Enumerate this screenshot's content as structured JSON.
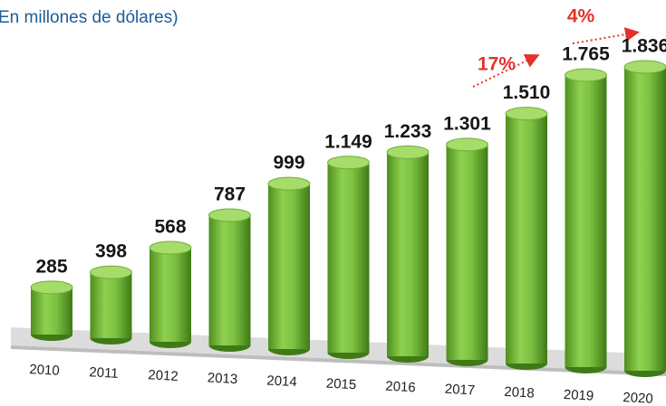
{
  "chart_data": {
    "type": "bar",
    "subtitle": "En millones de dólares)",
    "categories": [
      "2010",
      "2011",
      "2012",
      "2013",
      "2014",
      "2015",
      "2016",
      "2017",
      "2018",
      "2019",
      "2020"
    ],
    "values": [
      285,
      398,
      568,
      787,
      999,
      1149,
      1233,
      1301,
      1510,
      1765,
      1836
    ],
    "value_labels": [
      "285",
      "398",
      "568",
      "787",
      "999",
      "1.149",
      "1.233",
      "1.301",
      "1.510",
      "1.765",
      "1.836"
    ],
    "color": "#7dc242",
    "annotations": [
      "17%",
      "4%"
    ]
  }
}
